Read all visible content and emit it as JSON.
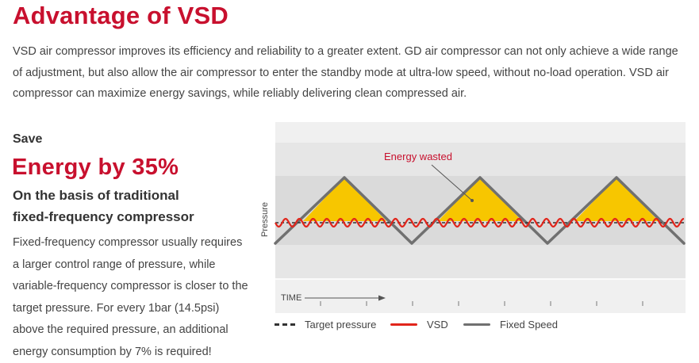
{
  "title": "Advantage of VSD",
  "intro": "VSD air compressor improves its efficiency and reliability to a greater extent. GD air compressor can not only achieve a wide range of adjustment, but also allow the air compressor to enter the standby mode at ultra-low speed, without no-load operation. VSD air compressor can maximize energy savings, while reliably delivering clean compressed air.",
  "save_label": "Save",
  "energy_headline": "Energy by 35%",
  "basis_line1": "On the basis of traditional",
  "basis_line2": "fixed-frequency compressor",
  "description": "Fixed-frequency compressor usually requires a larger control range of pressure, while variable-frequency compressor is closer to the target pressure.  For every 1bar (14.5psi) above the required pressure, an additional energy consumption by 7% is required!",
  "diagram": {
    "energy_wasted_label": "Energy wasted",
    "y_axis_label": "Pressure",
    "time_label": "TIME"
  },
  "legend": {
    "target": "Target pressure",
    "vsd": "VSD",
    "fixed": "Fixed Speed"
  },
  "colors": {
    "accent": "#c8102e",
    "vsd": "#e1251b",
    "fixed_speed": "#707070",
    "energy_wasted": "#f7c600"
  }
}
